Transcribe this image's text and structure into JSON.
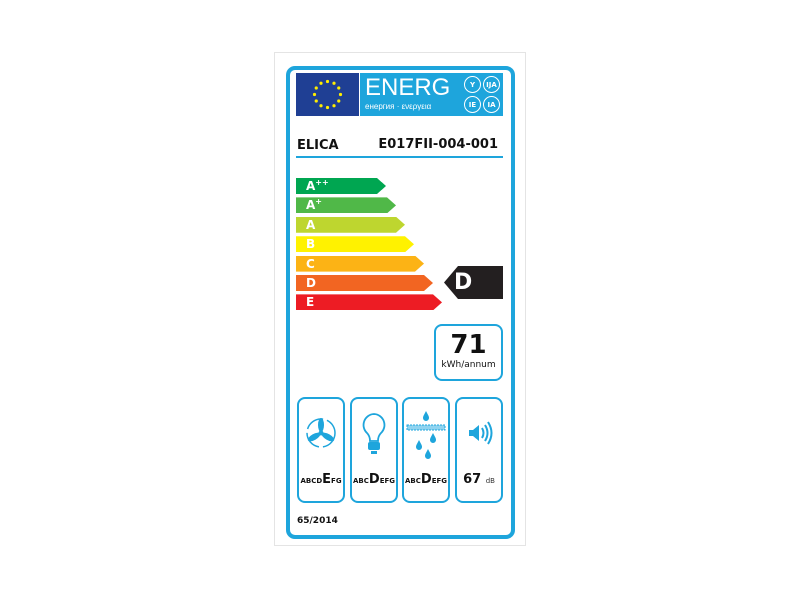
{
  "header": {
    "energ": "ENERG",
    "subtitle": "енергия · ενεργεια",
    "languages": [
      "Y",
      "IJA",
      "IE",
      "IA"
    ]
  },
  "supplier": "ELICA",
  "model": "E017FII-004-001",
  "scale": [
    {
      "label": "A",
      "sup": "++",
      "color": "#00a651"
    },
    {
      "label": "A",
      "sup": "+",
      "color": "#50b848"
    },
    {
      "label": "A",
      "sup": "",
      "color": "#bed62f"
    },
    {
      "label": "B",
      "sup": "",
      "color": "#fff200"
    },
    {
      "label": "C",
      "sup": "",
      "color": "#fcb315"
    },
    {
      "label": "D",
      "sup": "",
      "color": "#f26522"
    },
    {
      "label": "E",
      "sup": "",
      "color": "#ed1c24"
    }
  ],
  "rating": "D",
  "energy": {
    "value": "71",
    "unit": "kWh/annum"
  },
  "classes": {
    "fluid_dynamic": {
      "pre": "ABCD",
      "cls": "E",
      "post": "FG"
    },
    "lighting": {
      "pre": "ABC",
      "cls": "D",
      "post": "EFG"
    },
    "grease_filtering": {
      "pre": "ABC",
      "cls": "D",
      "post": "EFG"
    }
  },
  "noise": {
    "value": "67",
    "unit": "dB"
  },
  "regulation": "65/2014",
  "colors": {
    "frame": "#1ea5dc",
    "flag": "#1f3f94",
    "indicator": "#231f20"
  }
}
